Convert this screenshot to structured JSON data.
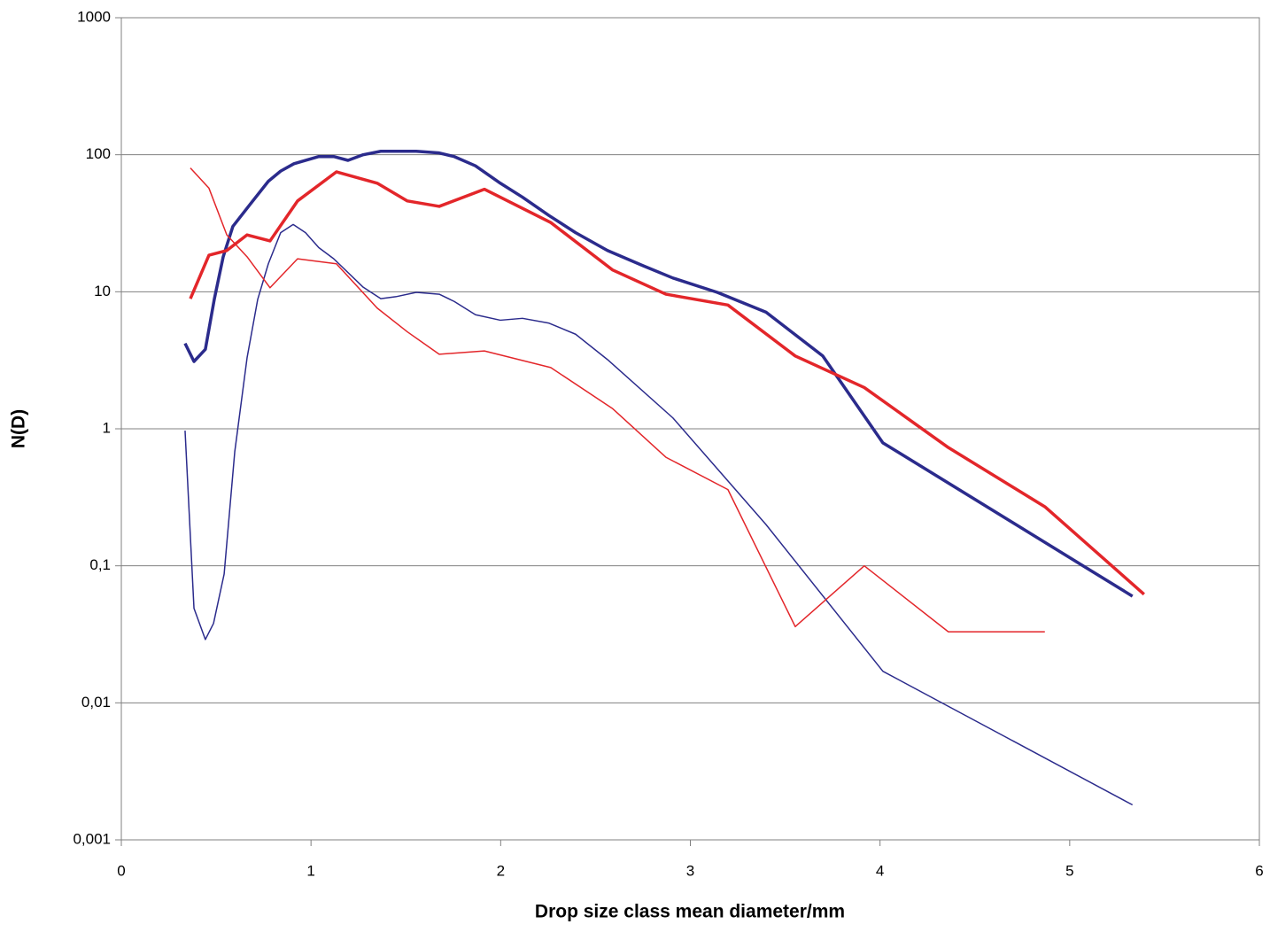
{
  "chart_data": {
    "type": "line",
    "xlabel": "Drop size class mean diameter/mm",
    "ylabel": "N(D)",
    "xlim": [
      0,
      6
    ],
    "xticks": [
      0,
      1,
      2,
      3,
      4,
      5,
      6
    ],
    "ylim": [
      0.001,
      1000
    ],
    "yscale": "log",
    "yticks": [
      {
        "value": 0.001,
        "label": "0,001"
      },
      {
        "value": 0.01,
        "label": "0,01"
      },
      {
        "value": 0.1,
        "label": "0,1"
      },
      1,
      10,
      100,
      1000
    ],
    "grid": true,
    "series": [
      {
        "color": "#2b2b8c",
        "line_width": 3.5,
        "x": [
          0.336,
          0.383,
          0.443,
          0.49,
          0.537,
          0.588,
          0.682,
          0.775,
          0.84,
          0.91,
          1.041,
          1.12,
          1.195,
          1.275,
          1.368,
          1.555,
          1.676,
          1.755,
          1.867,
          1.998,
          2.115,
          2.255,
          2.395,
          2.563,
          2.75,
          2.908,
          3.142,
          3.399,
          3.698,
          4.015,
          5.331
        ],
        "values": [
          4.2,
          3.1,
          3.8,
          8.8,
          18,
          30,
          44,
          64,
          76,
          86,
          97,
          97,
          91,
          100,
          106,
          106,
          103,
          97,
          83,
          62,
          49,
          36,
          27,
          20,
          15.5,
          12.6,
          9.9,
          7.1,
          3.4,
          0.79,
          0.06
        ]
      },
      {
        "color": "#e3262a",
        "line_width": 3.5,
        "x": [
          0.364,
          0.462,
          0.556,
          0.663,
          0.784,
          0.929,
          1.134,
          1.349,
          1.508,
          1.676,
          1.914,
          2.264,
          2.591,
          2.871,
          3.198,
          3.553,
          3.917,
          4.36,
          4.869,
          5.392
        ],
        "values": [
          8.9,
          18.5,
          20,
          26,
          23.5,
          46,
          75,
          62,
          46,
          42,
          56,
          32,
          14.4,
          9.6,
          8.0,
          3.4,
          2.0,
          0.73,
          0.27,
          0.062
        ]
      },
      {
        "color": "#2b2b8c",
        "line_width": 1.5,
        "x": [
          0.336,
          0.383,
          0.443,
          0.486,
          0.542,
          0.598,
          0.663,
          0.719,
          0.775,
          0.84,
          0.906,
          0.971,
          1.041,
          1.12,
          1.275,
          1.368,
          1.447,
          1.555,
          1.676,
          1.755,
          1.867,
          1.998,
          2.115,
          2.255,
          2.395,
          2.563,
          2.908,
          3.399,
          4.015,
          5.331
        ],
        "values": [
          0.97,
          0.049,
          0.029,
          0.038,
          0.087,
          0.68,
          3.3,
          8.8,
          16,
          27,
          31,
          27,
          21,
          17.4,
          10.8,
          8.9,
          9.2,
          9.9,
          9.6,
          8.5,
          6.8,
          6.2,
          6.4,
          5.9,
          4.9,
          3.2,
          1.2,
          0.2,
          0.017,
          0.0018
        ]
      },
      {
        "color": "#e3262a",
        "line_width": 1.5,
        "x": [
          0.364,
          0.462,
          0.556,
          0.663,
          0.784,
          0.929,
          1.134,
          1.349,
          1.508,
          1.676,
          1.914,
          2.264,
          2.591,
          2.871,
          3.198,
          3.553,
          3.917,
          4.36,
          4.869
        ],
        "values": [
          80,
          57,
          26,
          18,
          10.7,
          17.4,
          16,
          7.6,
          5.1,
          3.5,
          3.7,
          2.8,
          1.4,
          0.62,
          0.36,
          0.036,
          0.1,
          0.033,
          0.033
        ]
      }
    ]
  }
}
